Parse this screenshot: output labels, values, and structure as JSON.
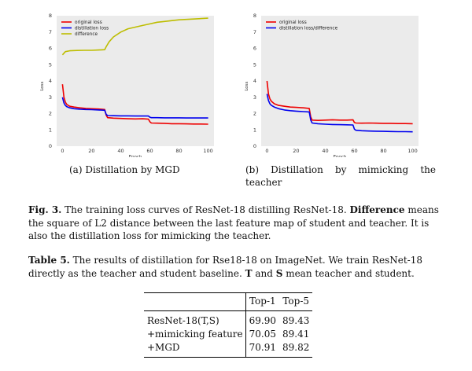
{
  "chart_data": [
    {
      "type": "line",
      "xlabel": "Epoch",
      "ylabel": "Loss",
      "xlim": [
        -4,
        104
      ],
      "ylim": [
        0,
        8
      ],
      "xticks": [
        0,
        20,
        40,
        60,
        80,
        100
      ],
      "yticks": [
        0,
        1,
        2,
        3,
        4,
        5,
        6,
        7,
        8
      ],
      "legend_position": "top-left",
      "series": [
        {
          "name": "original loss",
          "color": "#ee0000",
          "x": [
            0,
            1,
            2,
            3,
            5,
            8,
            12,
            16,
            20,
            25,
            29,
            30,
            31,
            35,
            40,
            45,
            50,
            55,
            59,
            60,
            61,
            65,
            70,
            75,
            80,
            85,
            90,
            95,
            100
          ],
          "y": [
            3.8,
            3.0,
            2.7,
            2.55,
            2.45,
            2.4,
            2.35,
            2.32,
            2.3,
            2.28,
            2.25,
            1.9,
            1.75,
            1.72,
            1.7,
            1.68,
            1.67,
            1.68,
            1.66,
            1.5,
            1.42,
            1.41,
            1.4,
            1.38,
            1.38,
            1.37,
            1.36,
            1.36,
            1.35
          ]
        },
        {
          "name": "distillation loss",
          "color": "#0000ee",
          "x": [
            0,
            1,
            2,
            3,
            5,
            8,
            12,
            16,
            20,
            25,
            29,
            30,
            31,
            35,
            40,
            45,
            50,
            55,
            59,
            60,
            61,
            65,
            70,
            75,
            80,
            85,
            90,
            95,
            100
          ],
          "y": [
            3.0,
            2.65,
            2.5,
            2.42,
            2.35,
            2.3,
            2.27,
            2.25,
            2.24,
            2.22,
            2.2,
            1.95,
            1.88,
            1.87,
            1.86,
            1.86,
            1.85,
            1.85,
            1.85,
            1.78,
            1.75,
            1.75,
            1.74,
            1.74,
            1.74,
            1.73,
            1.73,
            1.73,
            1.73
          ]
        },
        {
          "name": "difference",
          "color": "#bdbd00",
          "x": [
            0,
            2,
            5,
            10,
            15,
            20,
            25,
            29,
            30,
            32,
            35,
            40,
            45,
            50,
            55,
            60,
            65,
            70,
            80,
            90,
            100
          ],
          "y": [
            5.6,
            5.8,
            5.85,
            5.87,
            5.88,
            5.88,
            5.9,
            5.92,
            6.1,
            6.4,
            6.7,
            7.0,
            7.2,
            7.3,
            7.4,
            7.5,
            7.6,
            7.65,
            7.75,
            7.8,
            7.85
          ]
        }
      ]
    },
    {
      "type": "line",
      "xlabel": "Epoch",
      "ylabel": "Loss",
      "xlim": [
        -4,
        104
      ],
      "ylim": [
        0,
        8
      ],
      "xticks": [
        0,
        20,
        40,
        60,
        80,
        100
      ],
      "yticks": [
        0,
        1,
        2,
        3,
        4,
        5,
        6,
        7,
        8
      ],
      "legend_position": "top-left",
      "series": [
        {
          "name": "original loss",
          "color": "#ee0000",
          "x": [
            0,
            1,
            2,
            3,
            5,
            8,
            12,
            16,
            20,
            25,
            29,
            30,
            31,
            35,
            40,
            45,
            50,
            55,
            59,
            60,
            61,
            65,
            70,
            75,
            80,
            85,
            90,
            95,
            100
          ],
          "y": [
            4.0,
            3.2,
            2.9,
            2.75,
            2.6,
            2.5,
            2.45,
            2.4,
            2.38,
            2.35,
            2.32,
            1.8,
            1.6,
            1.58,
            1.6,
            1.62,
            1.6,
            1.6,
            1.62,
            1.45,
            1.42,
            1.41,
            1.42,
            1.41,
            1.4,
            1.4,
            1.39,
            1.39,
            1.38
          ]
        },
        {
          "name": "distillation loss/difference",
          "color": "#0000ee",
          "x": [
            0,
            1,
            2,
            3,
            5,
            8,
            12,
            16,
            20,
            25,
            29,
            30,
            31,
            35,
            40,
            45,
            50,
            55,
            59,
            60,
            61,
            65,
            70,
            75,
            80,
            85,
            90,
            95,
            100
          ],
          "y": [
            3.2,
            2.8,
            2.6,
            2.5,
            2.4,
            2.3,
            2.22,
            2.18,
            2.15,
            2.12,
            2.1,
            1.6,
            1.42,
            1.38,
            1.35,
            1.33,
            1.32,
            1.31,
            1.3,
            1.05,
            0.98,
            0.95,
            0.93,
            0.92,
            0.91,
            0.9,
            0.89,
            0.89,
            0.88
          ]
        }
      ]
    }
  ],
  "subcaptions": {
    "a": "(a) Distillation by MGD",
    "b_line1_words": [
      "(b)",
      "Distillation",
      "by",
      "mimicking",
      "the"
    ],
    "b_line2": "teacher"
  },
  "figure_caption": {
    "label": "Fig. 3.",
    "text1": " The training loss curves of ResNet-18 distilling ResNet-18. ",
    "bold_term": "Difference",
    "text2": " means the square of L2 distance between the last feature map of student and teacher. It is also the distillation loss for mimicking the teacher."
  },
  "table_caption": {
    "label": "Table 5.",
    "text1": " The results of distillation for Rse18-18 on ImageNet. We train ResNet-18 directly as the teacher and student baseline. ",
    "bold_t": "T",
    "text2": " and ",
    "bold_s": "S",
    "text3": " mean teacher and student."
  },
  "table": {
    "headers": [
      "",
      "Top-1",
      "Top-5"
    ],
    "rows": [
      {
        "name": "ResNet-18(T,S)",
        "top1": "69.90",
        "top5": "89.43"
      },
      {
        "name": "+mimicking feature",
        "top1": "70.05",
        "top5": "89.41"
      },
      {
        "name": "+MGD",
        "top1": "70.91",
        "top5": "89.82"
      }
    ]
  }
}
